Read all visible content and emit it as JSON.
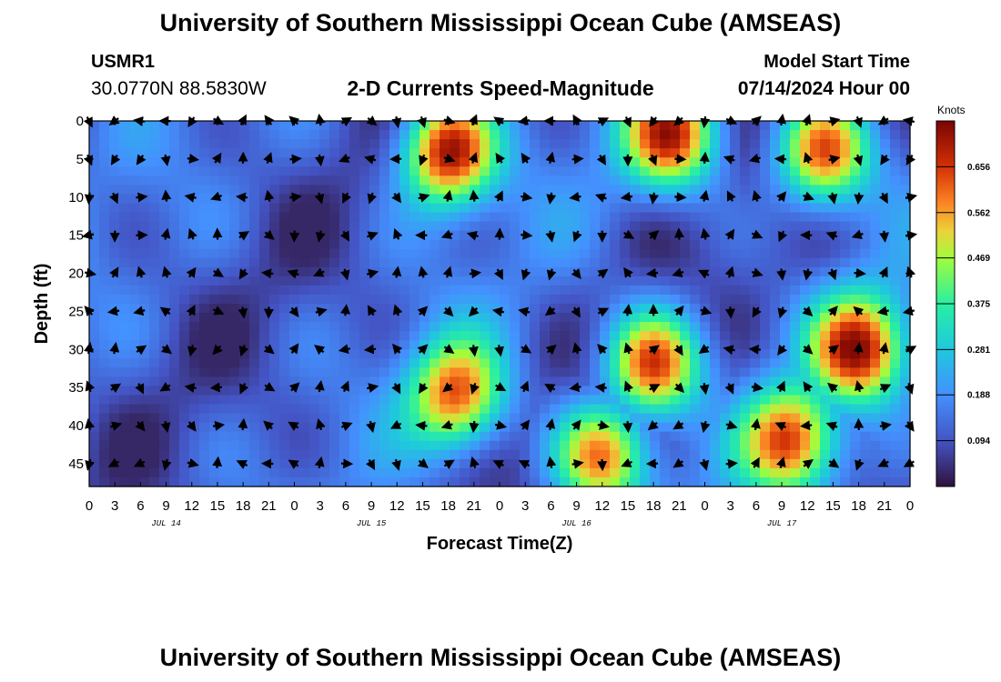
{
  "header": {
    "title": "University of Southern Mississippi Ocean Cube (AMSEAS)",
    "station_id": "USMR1",
    "coordinates": "30.0770N  88.5830W",
    "plot_title": "2-D Currents Speed-Magnitude",
    "model_start_label": "Model Start Time",
    "model_start_value": "07/14/2024 Hour 00"
  },
  "footer": {
    "title": "University of Southern Mississippi Ocean Cube (AMSEAS)"
  },
  "chart_data": {
    "type": "heatmap",
    "title": "2-D Currents Speed-Magnitude",
    "xlabel": "Forecast Time(Z)",
    "ylabel": "Depth (ft)",
    "x_tick_labels": [
      "0",
      "3",
      "6",
      "9",
      "12",
      "15",
      "18",
      "21",
      "0",
      "3",
      "6",
      "9",
      "12",
      "15",
      "18",
      "21",
      "0",
      "3",
      "6",
      "9",
      "12",
      "15",
      "18",
      "21",
      "0",
      "3",
      "6",
      "9",
      "12",
      "15",
      "18",
      "21",
      "0"
    ],
    "date_labels": [
      {
        "label": "JUL 14",
        "hour_offset": 9
      },
      {
        "label": "JUL 15",
        "hour_offset": 33
      },
      {
        "label": "JUL 16",
        "hour_offset": 57
      },
      {
        "label": "JUL 17",
        "hour_offset": 81
      }
    ],
    "xlim": [
      0,
      96
    ],
    "y_ticks": [
      0,
      5,
      10,
      15,
      20,
      25,
      30,
      35,
      40,
      45
    ],
    "ylim": [
      0,
      48
    ],
    "colorbar": {
      "unit_label": "Knots",
      "ticks": [
        "0.656",
        "0.562",
        "0.469",
        "0.375",
        "0.281",
        "0.188",
        "0.094"
      ],
      "range": [
        0,
        0.75
      ]
    },
    "speed_peaks": [
      {
        "hour": 42,
        "depth": 4,
        "speed": 0.72
      },
      {
        "hour": 68,
        "depth": 2,
        "speed": 0.66
      },
      {
        "hour": 86,
        "depth": 4,
        "speed": 0.64
      },
      {
        "hour": 60,
        "depth": 44,
        "speed": 0.62
      },
      {
        "hour": 66,
        "depth": 32,
        "speed": 0.66
      },
      {
        "hour": 90,
        "depth": 30,
        "speed": 0.68
      },
      {
        "hour": 82,
        "depth": 42,
        "speed": 0.62
      },
      {
        "hour": 43,
        "depth": 36,
        "speed": 0.6
      }
    ],
    "vector_hours": [
      0,
      3,
      6,
      9,
      12,
      15,
      18,
      21,
      24,
      27,
      30,
      33,
      36,
      39,
      42,
      45,
      48,
      51,
      54,
      57,
      60,
      63,
      66,
      69,
      72,
      75,
      78,
      81,
      84,
      87,
      90,
      93,
      96
    ],
    "vector_depths": [
      0,
      5,
      10,
      15,
      20,
      25,
      30,
      35,
      40,
      45
    ]
  }
}
